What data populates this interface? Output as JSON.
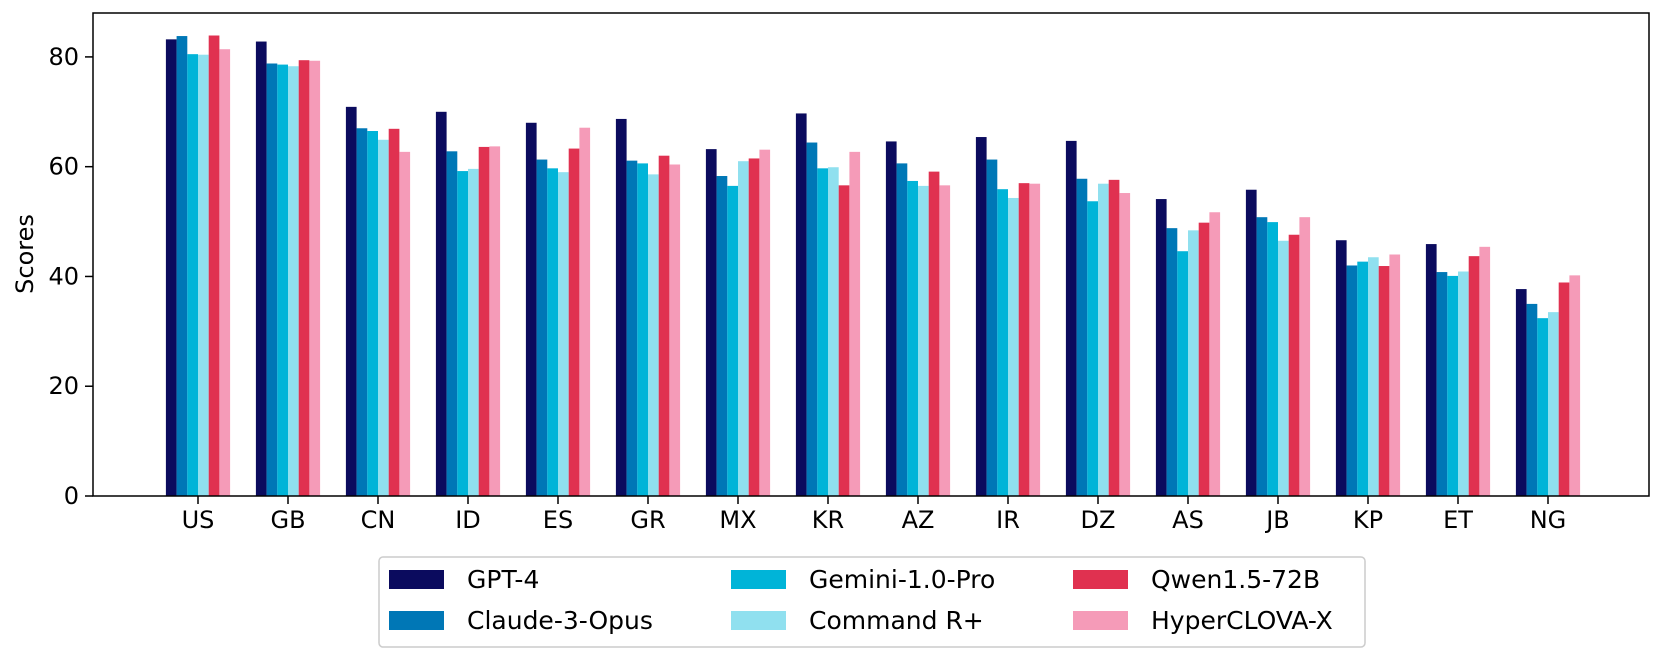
{
  "chart_data": {
    "type": "bar",
    "ylabel": "Scores",
    "xlabel": "",
    "ylim": [
      0,
      88
    ],
    "yticks": [
      0,
      20,
      40,
      60,
      80
    ],
    "grid": false,
    "legend_position": "bottom-center",
    "categories": [
      "US",
      "GB",
      "CN",
      "ID",
      "ES",
      "GR",
      "MX",
      "KR",
      "AZ",
      "IR",
      "DZ",
      "AS",
      "JB",
      "KP",
      "ET",
      "NG"
    ],
    "series": [
      {
        "name": "GPT-4",
        "color": "#0b0b5e",
        "values": [
          83.2,
          82.8,
          70.9,
          70.0,
          68.0,
          68.7,
          63.2,
          69.7,
          64.6,
          65.4,
          64.7,
          54.1,
          55.8,
          46.6,
          45.9,
          37.7
        ]
      },
      {
        "name": "Claude-3-Opus",
        "color": "#0077b6",
        "values": [
          83.8,
          78.8,
          67.0,
          62.8,
          61.3,
          61.1,
          58.3,
          64.4,
          60.6,
          61.3,
          57.8,
          48.8,
          50.8,
          42.0,
          40.8,
          35.0
        ]
      },
      {
        "name": "Gemini-1.0-Pro",
        "color": "#00b4d8",
        "values": [
          80.5,
          78.6,
          66.5,
          59.2,
          59.7,
          60.6,
          56.5,
          59.7,
          57.4,
          55.9,
          53.7,
          44.6,
          49.9,
          42.7,
          40.1,
          32.4
        ]
      },
      {
        "name": "Command R+",
        "color": "#90e0ef",
        "values": [
          80.4,
          78.3,
          64.9,
          59.6,
          59.0,
          58.6,
          61.0,
          59.9,
          56.5,
          54.3,
          56.9,
          48.4,
          46.5,
          43.5,
          40.9,
          33.5
        ]
      },
      {
        "name": "Qwen1.5-72B",
        "color": "#e03150",
        "values": [
          83.9,
          79.4,
          66.9,
          63.6,
          63.3,
          62.0,
          61.5,
          56.6,
          59.1,
          57.0,
          57.6,
          49.8,
          47.6,
          41.9,
          43.7,
          38.9
        ]
      },
      {
        "name": "HyperCLOVA-X",
        "color": "#f59bb8",
        "values": [
          81.4,
          79.3,
          62.7,
          63.7,
          67.1,
          60.4,
          63.1,
          62.7,
          56.6,
          56.9,
          55.2,
          51.7,
          50.8,
          44.0,
          45.4,
          40.2
        ]
      }
    ]
  }
}
